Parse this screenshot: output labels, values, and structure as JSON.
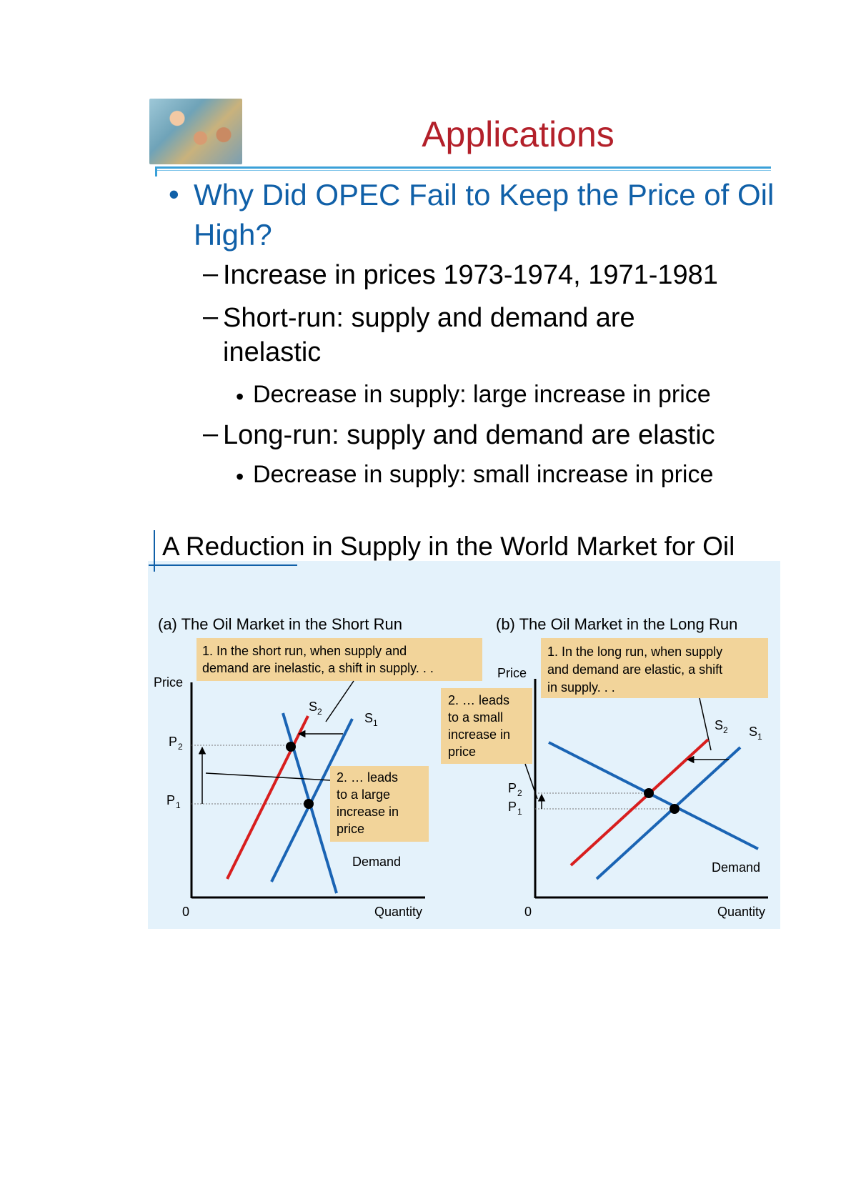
{
  "header": {
    "title": "Applications",
    "photo_icon": "people-photo"
  },
  "bullets": {
    "main": "Why Did OPEC Fail to Keep the Price of Oil High?",
    "dash1": "Increase in prices 1973-1974, 1971-1981",
    "dash2": "Short-run: supply and demand are inelastic",
    "sub2": "Decrease in supply: large increase in price",
    "dash3": "Long-run: supply and demand are elastic",
    "sub3": "Decrease in supply: small increase in price",
    "bullet_char": "•",
    "dash_char": "–"
  },
  "figure": {
    "title": "A Reduction in Supply in the World Market for Oil",
    "colors": {
      "panel": "#e4f2fb",
      "callout": "#f2d49a",
      "s1": "#1a64b4",
      "s2": "#d81e1e",
      "demand": "#1a64b4"
    },
    "panel_a": {
      "title": "(a) The Oil Market in the Short Run",
      "callout1": [
        "1. In the short run, when supply and",
        "demand are inelastic, a shift in supply. . ."
      ],
      "callout2": [
        "2. … leads",
        "to a large",
        "increase in",
        "price"
      ],
      "ylabel": "Price",
      "xlabel": "Quantity",
      "origin": "0",
      "p2": "P",
      "p2_sub": "2",
      "p1": "P",
      "p1_sub": "1",
      "s2": "S",
      "s2_sub": "2",
      "s1": "S",
      "s1_sub": "1",
      "demand": "Demand"
    },
    "panel_b": {
      "title": "(b) The Oil Market in the Long Run",
      "callout1": [
        "1. In the long run, when supply",
        "and demand are elastic, a shift",
        "in supply. . ."
      ],
      "callout2": [
        "2. … leads",
        "to a small",
        "increase in",
        "price"
      ],
      "ylabel": "Price",
      "xlabel": "Quantity",
      "origin": "0",
      "p2": "P",
      "p2_sub": "2",
      "p1": "P",
      "p1_sub": "1",
      "s2": "S",
      "s2_sub": "2",
      "s1": "S",
      "s1_sub": "1",
      "demand": "Demand"
    }
  }
}
